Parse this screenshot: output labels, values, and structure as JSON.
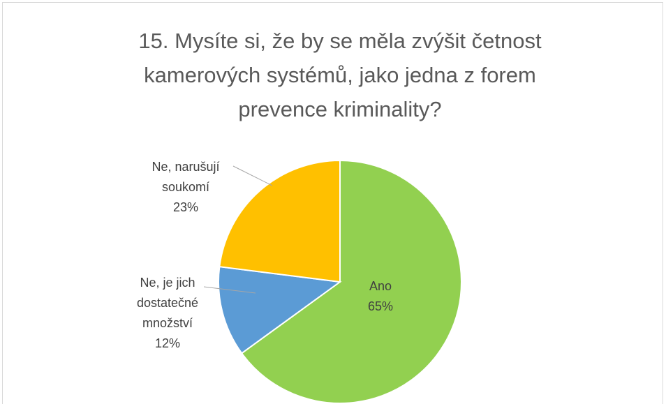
{
  "chart_data": {
    "type": "pie",
    "title": "15. Mysíte si, že by se měla zvýšit četnost kamerových systémů, jako jedna z forem prevence kriminality?",
    "categories": [
      "Ano",
      "Ne, je jich dostatečné množství",
      "Ne, narušují soukomí"
    ],
    "values": [
      65,
      12,
      23
    ],
    "value_labels": [
      "65%",
      "12%",
      "23%"
    ],
    "colors": [
      "#92d050",
      "#5b9bd5",
      "#ffc000"
    ]
  }
}
